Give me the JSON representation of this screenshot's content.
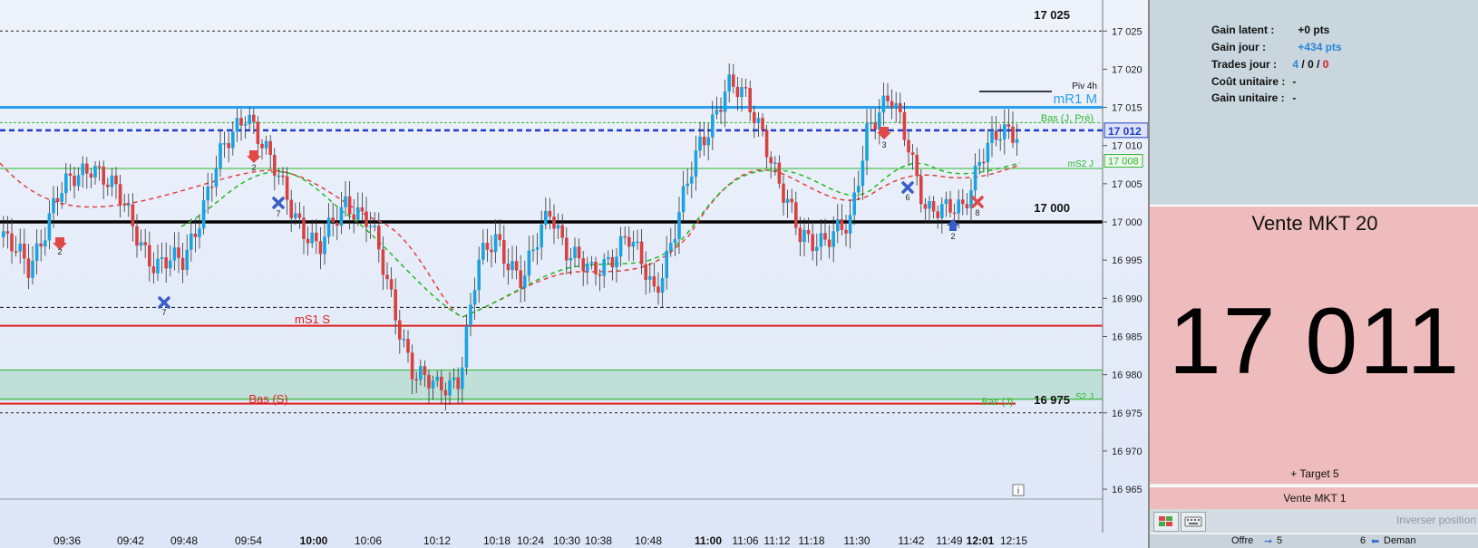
{
  "chart": {
    "price_axis_ticks": [
      "17 025",
      "17 020",
      "17 015",
      "17 010",
      "17 005",
      "17 000",
      "16 995",
      "16 990",
      "16 985",
      "16 980",
      "16 975",
      "16 970",
      "16 965"
    ],
    "time_axis_ticks": [
      "09:36",
      "09:42",
      "09:48",
      "09:54",
      "10:00",
      "10:06",
      "10:12",
      "10:18",
      "10:24",
      "10:30",
      "10:38",
      "10:48",
      "11:00",
      "11:06",
      "11:12",
      "11:18",
      "11:30",
      "11:42",
      "11:49",
      "12:01",
      "12:15"
    ],
    "bold_time_ticks": [
      "10:00",
      "11:00",
      "12:01"
    ],
    "level_labels": {
      "top": "17 025",
      "mid": "17 000",
      "bottom": "16 975",
      "piv4h": "Piv 4h",
      "mr1": "mR1 M",
      "bas_j_pre": "Bas (J, Pré)",
      "ms2j": "mS2 J",
      "ms1s": "mS1 S",
      "bas_s": "Bas (S)",
      "s2j": "S2 J",
      "bas_j": "Bas (J)"
    },
    "price_flags": {
      "current": "17 012",
      "ms2j_value": "17 008"
    },
    "colors": {
      "bull": "#1aa3e0",
      "bear": "#d94040",
      "mr1": "#2aa0f0",
      "support": "#e02020",
      "green": "#2db82d"
    },
    "marker_labels": [
      "2",
      "7",
      "2",
      "7",
      "3",
      "6",
      "2",
      "8"
    ],
    "info_icon": "i"
  },
  "stats": {
    "gain_latent_label": "Gain latent :",
    "gain_latent_value": "+0 pts",
    "gain_jour_label": "Gain jour :",
    "gain_jour_value": "+434 pts",
    "trades_label": "Trades jour :",
    "trades_win": "4",
    "trades_sep1": "/",
    "trades_flat": "0",
    "trades_sep2": "/",
    "trades_loss": "0",
    "cout_label": "Coût unitaire :",
    "cout_value": "-",
    "gain_unit_label": "Gain unitaire :",
    "gain_unit_value": "-"
  },
  "order": {
    "title": "Vente MKT 20",
    "price": "17 011",
    "target": "+ Target 5",
    "sub_label": "Vente MKT 1",
    "invert_label": "Inverser position"
  },
  "bottom_bar": {
    "offre_label": "Offre",
    "offre_value": "5",
    "demand_value": "6",
    "demand_label": "Deman"
  }
}
